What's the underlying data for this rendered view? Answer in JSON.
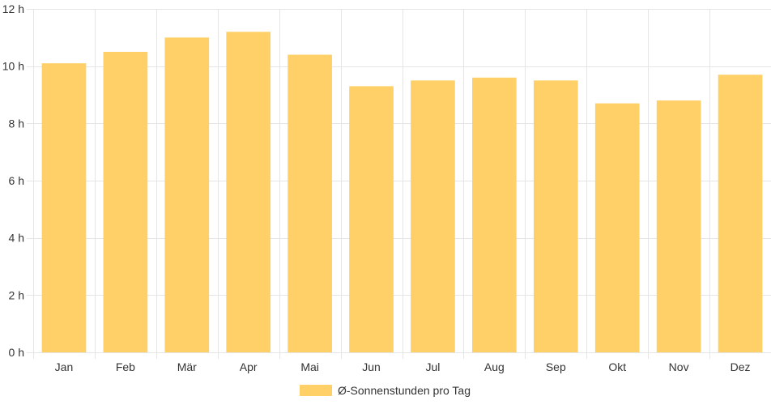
{
  "chart_data": {
    "type": "bar",
    "categories": [
      "Jan",
      "Feb",
      "Mär",
      "Apr",
      "Mai",
      "Jun",
      "Jul",
      "Aug",
      "Sep",
      "Okt",
      "Nov",
      "Dez"
    ],
    "series": [
      {
        "name": "Ø-Sonnenstunden pro Tag",
        "values": [
          10.1,
          10.5,
          11.0,
          11.2,
          10.4,
          9.3,
          9.5,
          9.6,
          9.5,
          8.7,
          8.8,
          9.7
        ],
        "color": "#fed067"
      }
    ],
    "y_ticks": [
      0,
      2,
      4,
      6,
      8,
      10,
      12
    ],
    "y_tick_suffix": " h",
    "ylim": [
      0,
      12
    ],
    "grid": true,
    "grid_color": "#e5e5e5",
    "legend_position": "bottom"
  }
}
